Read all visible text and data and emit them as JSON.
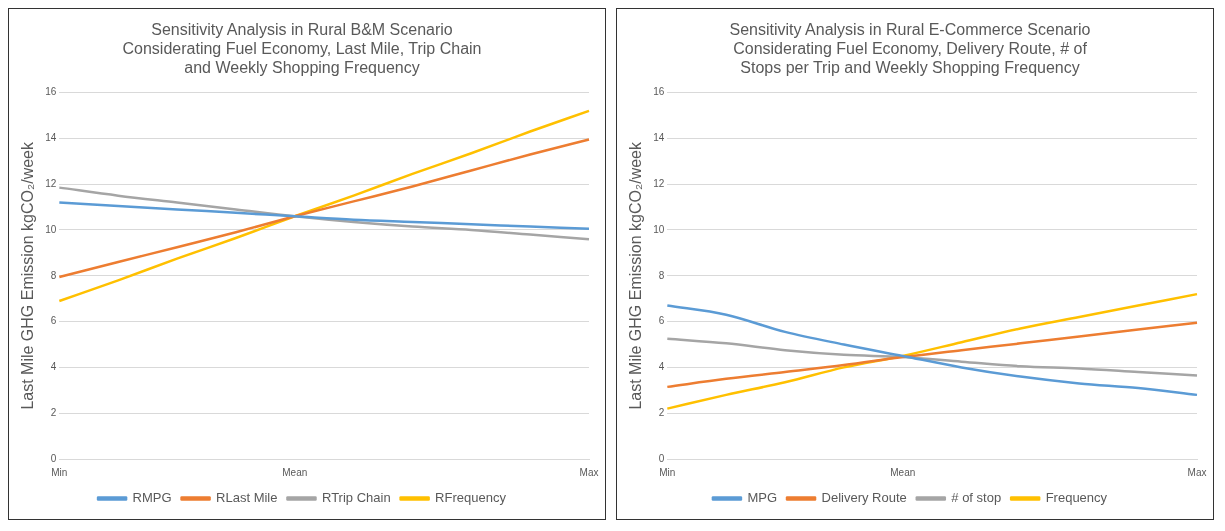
{
  "chart_data": [
    {
      "type": "line",
      "title": "Sensitivity Analysis in Rural B&M Scenario\nConsiderating Fuel Economy, Last Mile, Trip Chain\nand Weekly Shopping Frequency",
      "ylabel": "Last Mile GHG Emission kgCO₂/week",
      "categories": [
        "Min",
        null,
        null,
        null,
        "Mean",
        null,
        null,
        null,
        null,
        "Max"
      ],
      "series": [
        {
          "name": "RMPG",
          "color": "#5b9bd5",
          "values": [
            11.2,
            11.05,
            10.9,
            10.75,
            10.6,
            10.45,
            10.35,
            10.25,
            10.15,
            10.05
          ]
        },
        {
          "name": "RLast Mile",
          "color": "#ed7d31",
          "values": [
            7.95,
            8.6,
            9.25,
            9.9,
            10.6,
            11.25,
            11.9,
            12.6,
            13.3,
            13.95
          ]
        },
        {
          "name": "RTrip Chain",
          "color": "#a5a5a5",
          "values": [
            11.85,
            11.5,
            11.2,
            10.9,
            10.6,
            10.35,
            10.15,
            10.0,
            9.8,
            9.6
          ]
        },
        {
          "name": "RFrequency",
          "color": "#ffc000",
          "values": [
            6.9,
            7.8,
            8.75,
            9.65,
            10.6,
            11.5,
            12.45,
            13.35,
            14.3,
            15.2
          ]
        }
      ],
      "ylim": [
        0,
        16
      ],
      "yticks": [
        0,
        2,
        4,
        6,
        8,
        10,
        12,
        14,
        16
      ],
      "grid": "y",
      "legend": "bottom",
      "marker": "none",
      "line_style": "solid"
    },
    {
      "type": "line",
      "title": "Sensitivity Analysis in Rural E-Commerce Scenario\nConsiderating Fuel Economy, Delivery Route, # of\nStops per Trip and Weekly Shopping Frequency",
      "ylabel": "Last Mile GHG Emission kgCO₂/week",
      "categories": [
        "Min",
        null,
        null,
        null,
        "Mean",
        null,
        null,
        null,
        null,
        "Max"
      ],
      "series": [
        {
          "name": "MPG",
          "color": "#5b9bd5",
          "values": [
            6.7,
            6.3,
            5.55,
            5.0,
            4.5,
            4.0,
            3.6,
            3.3,
            3.1,
            2.8
          ]
        },
        {
          "name": "Delivery Route",
          "color": "#ed7d31",
          "values": [
            3.15,
            3.5,
            3.8,
            4.1,
            4.45,
            4.75,
            5.05,
            5.35,
            5.65,
            5.95
          ]
        },
        {
          "name": "# of stop",
          "color": "#a5a5a5",
          "values": [
            5.25,
            5.05,
            4.75,
            4.55,
            4.45,
            4.25,
            4.05,
            3.95,
            3.8,
            3.65
          ]
        },
        {
          "name": "Frequency",
          "color": "#ffc000",
          "values": [
            2.2,
            2.8,
            3.35,
            4.0,
            4.5,
            5.1,
            5.7,
            6.2,
            6.7,
            7.2
          ]
        }
      ],
      "ylim": [
        0,
        16
      ],
      "yticks": [
        0,
        2,
        4,
        6,
        8,
        10,
        12,
        14,
        16
      ],
      "grid": "y",
      "legend": "bottom",
      "marker": "none",
      "line_style": "solid"
    }
  ]
}
